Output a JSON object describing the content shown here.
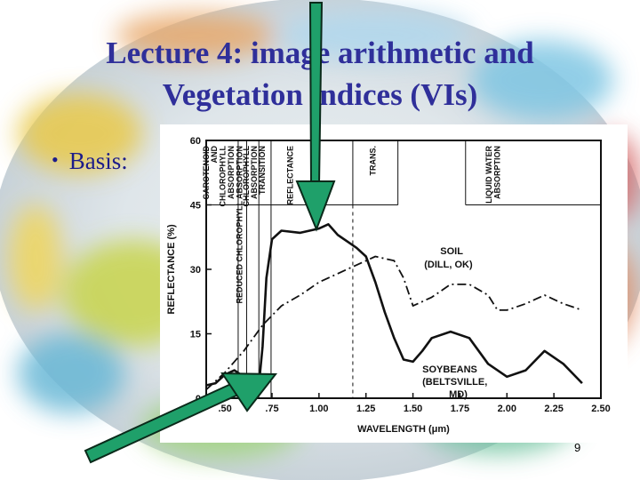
{
  "slide": {
    "title_line1": "Lecture 4: image arithmetic and",
    "title_line2": "Vegetation indices (VIs)",
    "bullet": "Basis:",
    "page_number": "9"
  },
  "chart_data": {
    "type": "line",
    "xlabel": "WAVELENGTH (μm)",
    "ylabel": "REFLECTANCE (%)",
    "xlim": [
      0.4,
      2.5
    ],
    "ylim": [
      0,
      60
    ],
    "x_ticks": [
      ".50",
      ".75",
      "1.00",
      "1.25",
      "1.50",
      "1.75",
      "2.00",
      "2.25",
      "2.50"
    ],
    "y_ticks": [
      "0",
      "15",
      "30",
      "45",
      "60"
    ],
    "grid": false,
    "region_labels": {
      "carotenoid": [
        "CAROTENOID",
        "AND",
        "CHLOROPHYLL",
        "ABSORPTION"
      ],
      "reduced": [
        "REDUCED CHLOROPHYLL ABSORPTION"
      ],
      "chlorophyll": [
        "CHLOROPHYLL",
        "ABSORPTION"
      ],
      "transition": [
        "TRANSITION"
      ],
      "reflectance": [
        "REFLECTANCE"
      ],
      "trans": [
        "TRANS."
      ],
      "liquid": [
        "LIQUID WATER",
        "ABSORPTION"
      ]
    },
    "series": [
      {
        "name": "SOIL (DILL, OK)",
        "label_lines": [
          "SOIL",
          "(DILL, OK)"
        ],
        "style": "dash-dot",
        "x": [
          0.4,
          0.5,
          0.6,
          0.7,
          0.8,
          0.9,
          1.0,
          1.1,
          1.2,
          1.3,
          1.4,
          1.45,
          1.5,
          1.6,
          1.7,
          1.8,
          1.9,
          1.95,
          2.0,
          2.1,
          2.2,
          2.3,
          2.4
        ],
        "values": [
          2.0,
          6.0,
          11.0,
          17.0,
          21.5,
          24.0,
          27.0,
          29.0,
          31.0,
          33.0,
          32.0,
          28.0,
          21.5,
          23.5,
          26.5,
          26.5,
          24.0,
          20.5,
          20.5,
          22.0,
          24.0,
          22.0,
          20.5
        ]
      },
      {
        "name": "SOYBEANS (BELTSVILLE, MD)",
        "label_lines": [
          "SOYBEANS",
          "(BELTSVILLE,",
          "MD)"
        ],
        "style": "solid",
        "x": [
          0.4,
          0.45,
          0.5,
          0.55,
          0.6,
          0.65,
          0.68,
          0.7,
          0.72,
          0.75,
          0.8,
          0.9,
          1.0,
          1.05,
          1.1,
          1.15,
          1.2,
          1.25,
          1.3,
          1.35,
          1.4,
          1.45,
          1.5,
          1.55,
          1.6,
          1.7,
          1.8,
          1.9,
          2.0,
          2.1,
          2.2,
          2.3,
          2.4
        ],
        "values": [
          3.0,
          3.5,
          5.5,
          6.5,
          5.0,
          2.5,
          3.0,
          12.0,
          28.0,
          37.0,
          39.0,
          38.5,
          39.5,
          40.5,
          38.0,
          36.5,
          35.0,
          33.0,
          27.0,
          20.0,
          14.0,
          9.0,
          8.5,
          11.0,
          14.0,
          15.5,
          14.0,
          8.0,
          5.0,
          6.5,
          11.0,
          8.0,
          3.5
        ]
      }
    ]
  }
}
